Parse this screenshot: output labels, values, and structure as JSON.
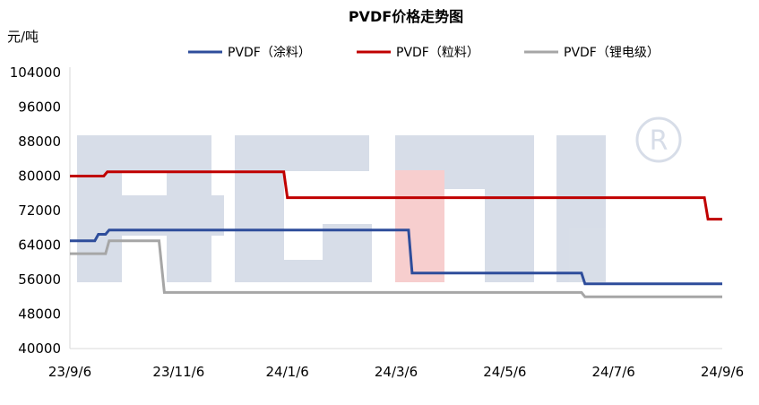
{
  "chart_data": {
    "type": "line",
    "title": "PVDF价格走势图",
    "unit": "元/吨",
    "xlabel": "",
    "ylabel": "",
    "ylim": [
      40000,
      104000
    ],
    "y_ticks": [
      40000,
      48000,
      56000,
      64000,
      72000,
      80000,
      88000,
      96000,
      104000
    ],
    "x_ticks": [
      "23/9/6",
      "23/11/6",
      "24/1/6",
      "24/3/6",
      "24/5/6",
      "24/7/6",
      "24/9/6"
    ],
    "xlim": [
      "2023-09-06",
      "2024-09-06"
    ],
    "grid": false,
    "legend_position": "top",
    "watermark": "ACMI®",
    "series": [
      {
        "name": "PVDF（涂料）",
        "color": "#2E4D9B",
        "points": [
          [
            "2023-09-06",
            65000
          ],
          [
            "2023-09-20",
            65000
          ],
          [
            "2023-09-22",
            66500
          ],
          [
            "2023-09-26",
            66500
          ],
          [
            "2023-09-28",
            67500
          ],
          [
            "2024-03-14",
            67500
          ],
          [
            "2024-03-16",
            57500
          ],
          [
            "2024-06-19",
            57500
          ],
          [
            "2024-06-21",
            55000
          ],
          [
            "2024-09-06",
            55000
          ]
        ]
      },
      {
        "name": "PVDF（粒料）",
        "color": "#C00000",
        "points": [
          [
            "2023-09-06",
            80000
          ],
          [
            "2023-09-25",
            80000
          ],
          [
            "2023-09-27",
            81000
          ],
          [
            "2024-01-04",
            81000
          ],
          [
            "2024-01-06",
            75000
          ],
          [
            "2024-08-27",
            75000
          ],
          [
            "2024-08-29",
            70000
          ],
          [
            "2024-09-06",
            70000
          ]
        ]
      },
      {
        "name": "PVDF（锂电级）",
        "color": "#A6A6A6",
        "points": [
          [
            "2023-09-06",
            62000
          ],
          [
            "2023-09-26",
            62000
          ],
          [
            "2023-09-28",
            65000
          ],
          [
            "2023-10-26",
            65000
          ],
          [
            "2023-10-29",
            53000
          ],
          [
            "2024-06-19",
            53000
          ],
          [
            "2024-06-21",
            52000
          ],
          [
            "2024-09-06",
            52000
          ]
        ]
      }
    ]
  }
}
